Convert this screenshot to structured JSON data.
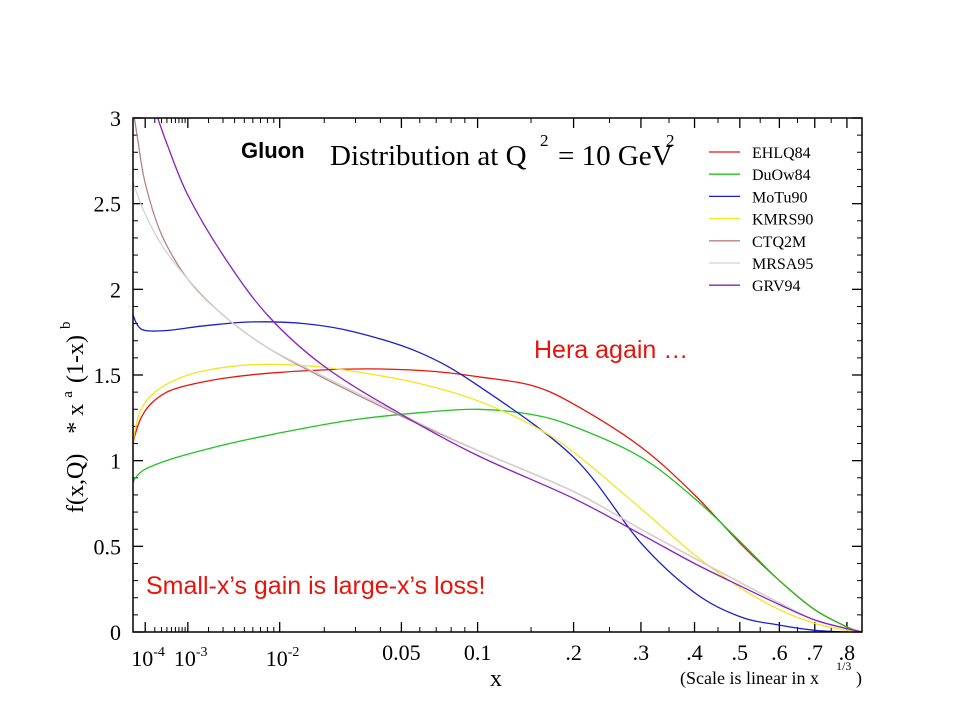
{
  "chart_data": {
    "type": "line",
    "title": "Distribution at Q",
    "title_prefix": "Gluon",
    "title_q_power": "2",
    "title_equals": "= 10 GeV",
    "title_gev_power": "2",
    "ylabel_main": "f(x,Q)",
    "ylabel_star_x": "* x",
    "ylabel_a": "a",
    "ylabel_one_minus": "(1-x)",
    "ylabel_b": "b",
    "xlabel": "x",
    "scale_note": "(Scale is linear in x",
    "scale_note_power": "1/3",
    "scale_note_close": ")",
    "ylim": [
      0,
      3
    ],
    "yticks": [
      "0",
      "0.5",
      "1",
      "1.5",
      "2",
      "2.5",
      "3"
    ],
    "x_scale": "cube-root",
    "xlim": [
      3e-05,
      0.85
    ],
    "xticks": [
      {
        "value": 0.0001,
        "base": "10",
        "exp": "-4"
      },
      {
        "value": 0.001,
        "base": "10",
        "exp": "-3"
      },
      {
        "value": 0.01,
        "base": "10",
        "exp": "-2"
      },
      {
        "value": 0.05,
        "label": "0.05"
      },
      {
        "value": 0.1,
        "label": "0.1"
      },
      {
        "value": 0.2,
        "label": ".2"
      },
      {
        "value": 0.3,
        "label": ".3"
      },
      {
        "value": 0.4,
        "label": ".4"
      },
      {
        "value": 0.5,
        "label": ".5"
      },
      {
        "value": 0.6,
        "label": ".6"
      },
      {
        "value": 0.7,
        "label": ".7"
      },
      {
        "value": 0.8,
        "label": ".8"
      }
    ],
    "legend_position": "top-right",
    "series": [
      {
        "name": "EHLQ84",
        "color": "#e8140c",
        "points": [
          [
            3e-05,
            1.1
          ],
          [
            4e-05,
            1.16
          ],
          [
            7e-05,
            1.25
          ],
          [
            0.00015,
            1.33
          ],
          [
            0.0004,
            1.4
          ],
          [
            0.001,
            1.44
          ],
          [
            0.003,
            1.48
          ],
          [
            0.008,
            1.51
          ],
          [
            0.02,
            1.53
          ],
          [
            0.04,
            1.535
          ],
          [
            0.07,
            1.52
          ],
          [
            0.1,
            1.49
          ],
          [
            0.15,
            1.44
          ],
          [
            0.2,
            1.33
          ],
          [
            0.3,
            1.08
          ],
          [
            0.4,
            0.8
          ],
          [
            0.5,
            0.52
          ],
          [
            0.6,
            0.3
          ],
          [
            0.7,
            0.13
          ],
          [
            0.8,
            0.03
          ],
          [
            0.85,
            0.0
          ]
        ]
      },
      {
        "name": "DuOw84",
        "color": "#22c322",
        "points": [
          [
            3e-05,
            0.87
          ],
          [
            4e-05,
            0.9
          ],
          [
            0.0001,
            0.95
          ],
          [
            0.0005,
            1.01
          ],
          [
            0.002,
            1.07
          ],
          [
            0.006,
            1.13
          ],
          [
            0.015,
            1.19
          ],
          [
            0.03,
            1.24
          ],
          [
            0.06,
            1.28
          ],
          [
            0.1,
            1.3
          ],
          [
            0.15,
            1.27
          ],
          [
            0.2,
            1.2
          ],
          [
            0.3,
            1.02
          ],
          [
            0.4,
            0.78
          ],
          [
            0.5,
            0.53
          ],
          [
            0.6,
            0.3
          ],
          [
            0.7,
            0.13
          ],
          [
            0.8,
            0.03
          ],
          [
            0.85,
            0.0
          ]
        ]
      },
      {
        "name": "MoTu90",
        "color": "#1a20c8",
        "points": [
          [
            3e-05,
            1.85
          ],
          [
            5e-05,
            1.79
          ],
          [
            0.0001,
            1.76
          ],
          [
            0.0004,
            1.76
          ],
          [
            0.002,
            1.79
          ],
          [
            0.006,
            1.81
          ],
          [
            0.015,
            1.8
          ],
          [
            0.03,
            1.75
          ],
          [
            0.06,
            1.63
          ],
          [
            0.1,
            1.44
          ],
          [
            0.2,
            1.02
          ],
          [
            0.3,
            0.52
          ],
          [
            0.4,
            0.23
          ],
          [
            0.5,
            0.09
          ],
          [
            0.6,
            0.04
          ],
          [
            0.7,
            0.01
          ],
          [
            0.8,
            0.0
          ],
          [
            0.85,
            0.0
          ]
        ]
      },
      {
        "name": "KMRS90",
        "color": "#f2e61e",
        "points": [
          [
            3e-05,
            1.1
          ],
          [
            4e-05,
            1.19
          ],
          [
            7e-05,
            1.3
          ],
          [
            0.0002,
            1.4
          ],
          [
            0.0007,
            1.48
          ],
          [
            0.002,
            1.53
          ],
          [
            0.006,
            1.56
          ],
          [
            0.015,
            1.555
          ],
          [
            0.03,
            1.52
          ],
          [
            0.06,
            1.45
          ],
          [
            0.1,
            1.35
          ],
          [
            0.15,
            1.21
          ],
          [
            0.2,
            1.05
          ],
          [
            0.3,
            0.72
          ],
          [
            0.4,
            0.45
          ],
          [
            0.5,
            0.26
          ],
          [
            0.6,
            0.13
          ],
          [
            0.7,
            0.05
          ],
          [
            0.8,
            0.01
          ],
          [
            0.85,
            0.0
          ]
        ]
      },
      {
        "name": "CTQ2M",
        "color": "#b98282",
        "points": [
          [
            3e-05,
            3.05
          ],
          [
            5e-05,
            2.88
          ],
          [
            0.0001,
            2.62
          ],
          [
            0.0003,
            2.32
          ],
          [
            0.001,
            2.06
          ],
          [
            0.003,
            1.85
          ],
          [
            0.008,
            1.66
          ],
          [
            0.02,
            1.48
          ],
          [
            0.05,
            1.26
          ],
          [
            0.1,
            1.06
          ],
          [
            0.2,
            0.82
          ],
          [
            0.3,
            0.6
          ],
          [
            0.4,
            0.43
          ],
          [
            0.5,
            0.29
          ],
          [
            0.6,
            0.17
          ],
          [
            0.7,
            0.07
          ],
          [
            0.8,
            0.02
          ],
          [
            0.85,
            0.0
          ]
        ]
      },
      {
        "name": "MRSA95",
        "color": "#d2d2d2",
        "points": [
          [
            3e-05,
            2.63
          ],
          [
            5e-05,
            2.55
          ],
          [
            0.0001,
            2.44
          ],
          [
            0.0003,
            2.26
          ],
          [
            0.001,
            2.06
          ],
          [
            0.003,
            1.85
          ],
          [
            0.008,
            1.66
          ],
          [
            0.02,
            1.49
          ],
          [
            0.05,
            1.27
          ],
          [
            0.1,
            1.06
          ],
          [
            0.2,
            0.82
          ],
          [
            0.3,
            0.6
          ],
          [
            0.4,
            0.43
          ],
          [
            0.5,
            0.29
          ],
          [
            0.6,
            0.17
          ],
          [
            0.7,
            0.07
          ],
          [
            0.8,
            0.02
          ],
          [
            0.85,
            0.0
          ]
        ]
      },
      {
        "name": "GRV94",
        "color": "#8a1fc2",
        "points": [
          [
            0.0002,
            3.05
          ],
          [
            0.0004,
            2.85
          ],
          [
            0.001,
            2.55
          ],
          [
            0.003,
            2.2
          ],
          [
            0.008,
            1.85
          ],
          [
            0.02,
            1.55
          ],
          [
            0.05,
            1.27
          ],
          [
            0.1,
            1.03
          ],
          [
            0.2,
            0.78
          ],
          [
            0.3,
            0.57
          ],
          [
            0.4,
            0.4
          ],
          [
            0.5,
            0.27
          ],
          [
            0.6,
            0.16
          ],
          [
            0.7,
            0.07
          ],
          [
            0.8,
            0.02
          ],
          [
            0.85,
            0.0
          ]
        ]
      }
    ],
    "annotations": [
      {
        "text": "Hera again …",
        "color": "#e8140c"
      },
      {
        "text": "Small-x’s gain is large-x’s loss!",
        "color": "#e8140c"
      }
    ]
  }
}
